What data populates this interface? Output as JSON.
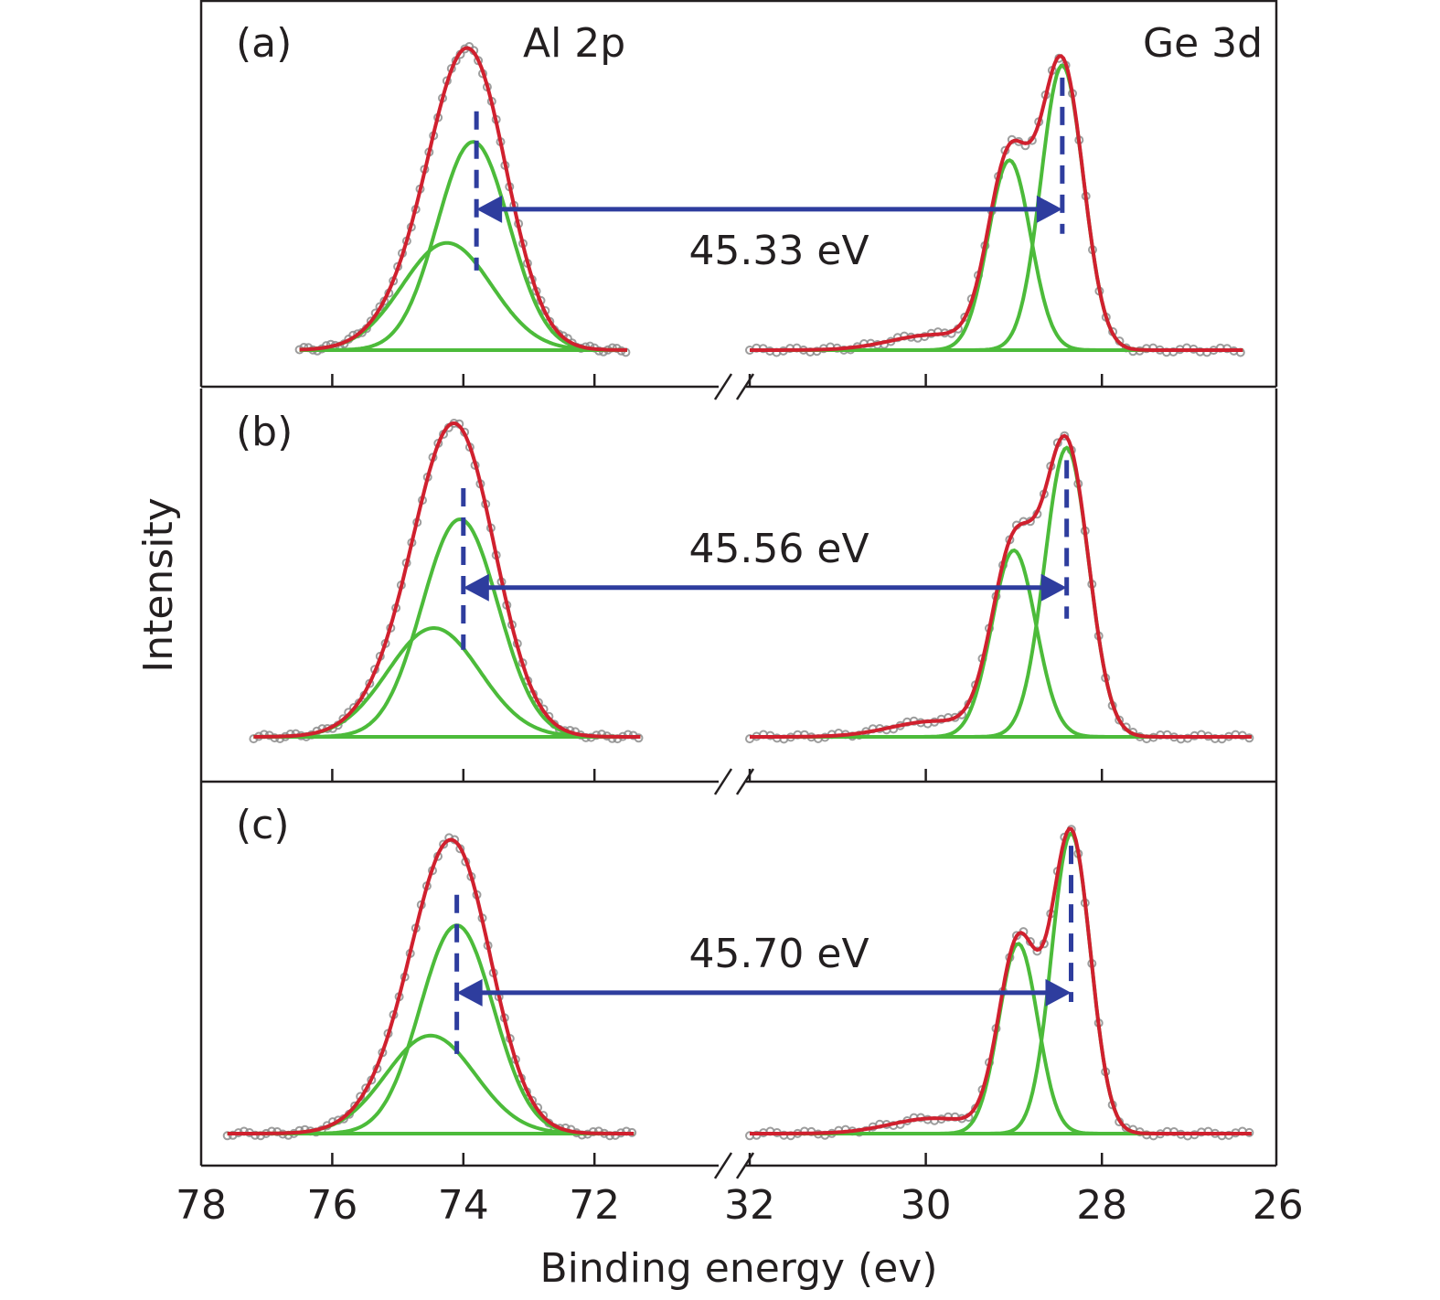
{
  "chart_data": {
    "type": "line",
    "title": "",
    "xlabel": "Binding energy (ev)",
    "ylabel": "Intensity",
    "x_axis": {
      "reversed": true,
      "broken": true,
      "segments": [
        {
          "range": [
            78,
            71.4
          ],
          "ticks": [
            78,
            76,
            74,
            72
          ]
        },
        {
          "range": [
            32,
            26
          ],
          "ticks": [
            32,
            30,
            28,
            26
          ]
        }
      ],
      "tick_labels": [
        "78",
        "76",
        "74",
        "72",
        "32",
        "30",
        "28",
        "26"
      ]
    },
    "colors": {
      "data_points": "#8c8c8c",
      "envelope_fit": "#d0202e",
      "component_fit": "#4cbb3a",
      "annotation": "#2e3d9e",
      "axis": "#231f20"
    },
    "series_legend": [
      "Measured data (open circles)",
      "Envelope fit (red)",
      "Component peaks (green)"
    ],
    "region_labels": {
      "left": "Al 2p",
      "right": "Ge 3d"
    },
    "panels": [
      {
        "label": "(a)",
        "separation_label": "45.33 eV",
        "separation_eV": 45.33,
        "al2p": {
          "range": [
            76.5,
            71.5
          ],
          "components": [
            {
              "center": 73.85,
              "height": 0.68,
              "sigma": 0.55
            },
            {
              "center": 74.25,
              "height": 0.35,
              "sigma": 0.68
            }
          ],
          "marker_eV": 73.8
        },
        "ge3d": {
          "range": [
            32.0,
            26.4
          ],
          "components": [
            {
              "center": 28.45,
              "height": 0.93,
              "sigma": 0.24
            },
            {
              "center": 29.05,
              "height": 0.62,
              "sigma": 0.24
            }
          ],
          "shoulder": {
            "center": 29.9,
            "height": 0.05,
            "sigma": 0.5
          },
          "marker_eV": 28.45
        }
      },
      {
        "label": "(b)",
        "separation_label": "45.56 eV",
        "separation_eV": 45.56,
        "al2p": {
          "range": [
            77.2,
            71.3
          ],
          "components": [
            {
              "center": 74.05,
              "height": 0.7,
              "sigma": 0.58
            },
            {
              "center": 74.45,
              "height": 0.35,
              "sigma": 0.7
            }
          ],
          "marker_eV": 74.0
        },
        "ge3d": {
          "range": [
            32.0,
            26.3
          ],
          "components": [
            {
              "center": 28.4,
              "height": 0.93,
              "sigma": 0.25
            },
            {
              "center": 29.0,
              "height": 0.6,
              "sigma": 0.25
            }
          ],
          "shoulder": {
            "center": 29.9,
            "height": 0.05,
            "sigma": 0.5
          },
          "marker_eV": 28.4
        }
      },
      {
        "label": "(c)",
        "separation_label": "45.70 eV",
        "separation_eV": 45.7,
        "al2p": {
          "range": [
            77.6,
            71.4
          ],
          "components": [
            {
              "center": 74.1,
              "height": 0.68,
              "sigma": 0.56
            },
            {
              "center": 74.5,
              "height": 0.32,
              "sigma": 0.68
            }
          ],
          "marker_eV": 74.1
        },
        "ge3d": {
          "range": [
            32.0,
            26.3
          ],
          "components": [
            {
              "center": 28.35,
              "height": 0.98,
              "sigma": 0.22
            },
            {
              "center": 28.95,
              "height": 0.62,
              "sigma": 0.22
            }
          ],
          "shoulder": {
            "center": 29.9,
            "height": 0.05,
            "sigma": 0.5
          },
          "marker_eV": 28.35
        }
      }
    ]
  }
}
